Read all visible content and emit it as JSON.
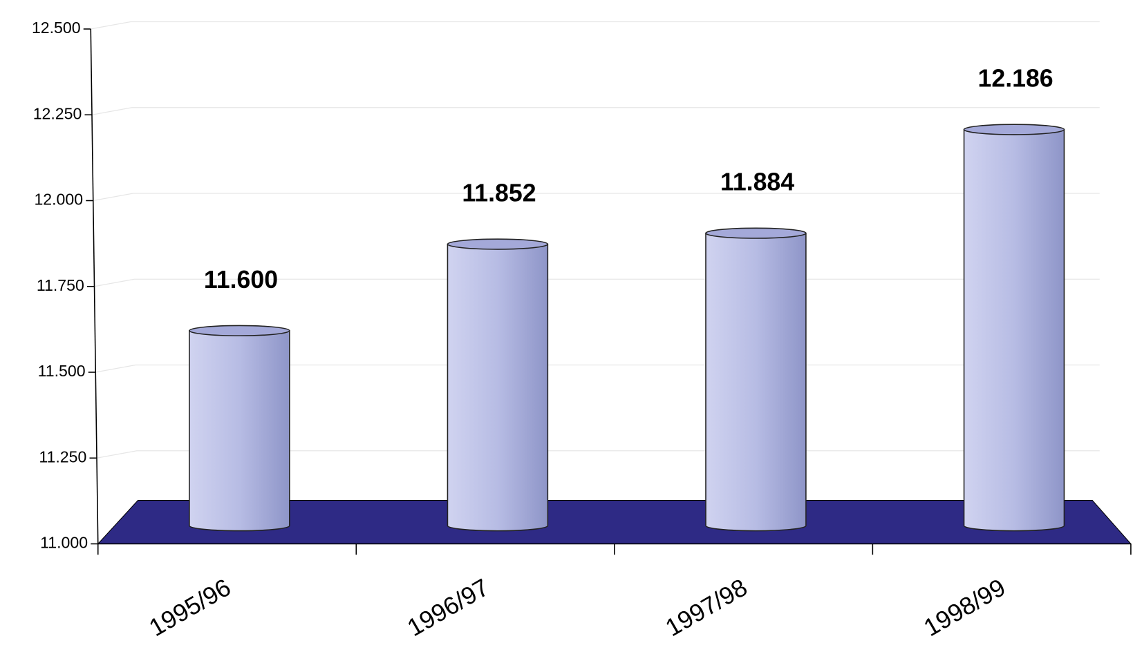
{
  "chart_data": {
    "type": "bar",
    "categories": [
      "1995/96",
      "1996/97",
      "1997/98",
      "1998/99"
    ],
    "values": [
      11600,
      11852,
      11884,
      12186
    ],
    "value_labels": [
      "11.600",
      "11.852",
      "11.884",
      "12.186"
    ],
    "color": "#b3b8e2",
    "floor_color": "#2e2a85",
    "ylim": [
      11000,
      12500
    ],
    "yticks": [
      {
        "value": 11000,
        "label": "11.000"
      },
      {
        "value": 11250,
        "label": "11.250"
      },
      {
        "value": 11500,
        "label": "11.500"
      },
      {
        "value": 11750,
        "label": "11.750"
      },
      {
        "value": 12000,
        "label": "12.000"
      },
      {
        "value": 12250,
        "label": "12.250"
      },
      {
        "value": 12500,
        "label": "12.500"
      }
    ],
    "grid": true
  }
}
